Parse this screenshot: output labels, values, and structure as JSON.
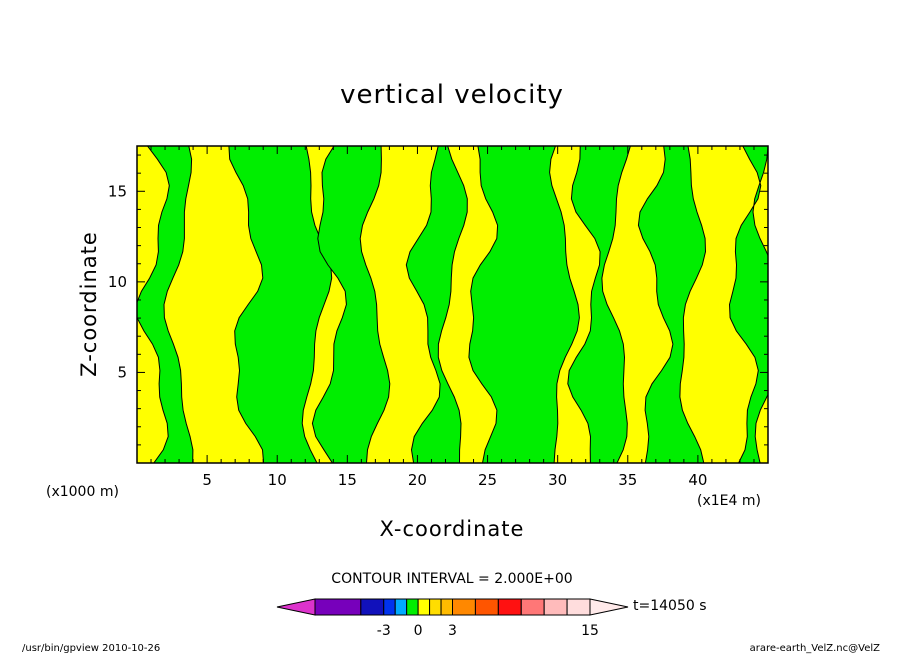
{
  "chart_data": {
    "type": "heatmap",
    "subtype": "filled-contour",
    "title": "vertical velocity",
    "xlabel": "X-coordinate",
    "ylabel": "Z-coordinate",
    "x_unit_left": "(x1000 m)",
    "x_unit_right": "(x1E4 m)",
    "xlim": [
      0,
      45
    ],
    "ylim": [
      0,
      17.5
    ],
    "xticks": [
      "5",
      "10",
      "15",
      "20",
      "25",
      "30",
      "35",
      "40"
    ],
    "yticks": [
      "5",
      "10",
      "15"
    ],
    "xtick_values": [
      5,
      10,
      15,
      20,
      25,
      30,
      35,
      40
    ],
    "ytick_values": [
      5,
      10,
      15
    ],
    "contour_interval_text": "CONTOUR INTERVAL = 2.000E+00",
    "time_label": "t=14050 s",
    "colorbar": {
      "labels": [
        "-3",
        "0",
        "3",
        "15"
      ],
      "label_values": [
        -3,
        0,
        3,
        15
      ],
      "levels": [
        -9,
        -5,
        -3,
        -2,
        -1,
        0,
        1,
        2,
        3,
        5,
        7,
        9,
        11,
        13,
        15
      ],
      "colors": [
        "#dd33cc",
        "#7700bb",
        "#1111bb",
        "#0033ee",
        "#00aaff",
        "#00ee00",
        "#ffff00",
        "#ffdd00",
        "#ffbb00",
        "#ff8800",
        "#ff5500",
        "#ff1111",
        "#ff7777",
        "#ffbbbb",
        "#ffdddd",
        "#ffeaea"
      ],
      "extend": "both"
    },
    "field_colors": {
      "positive": "#ffff00",
      "negative": "#00ee00",
      "contour": "#000000"
    },
    "negative_bands_x_km": [
      [
        1.2,
        3.0
      ],
      [
        7.8,
        12.8
      ],
      [
        13.8,
        17.0
      ],
      [
        20.5,
        22.5
      ],
      [
        24.5,
        30.5
      ],
      [
        32.0,
        34.2
      ],
      [
        37.0,
        39.5
      ],
      [
        43.2,
        45.0
      ]
    ],
    "grid": false,
    "legend": "none"
  },
  "footer": {
    "left": "/usr/bin/gpview   2010-10-26",
    "right": "arare-earth_VelZ.nc@VelZ"
  }
}
